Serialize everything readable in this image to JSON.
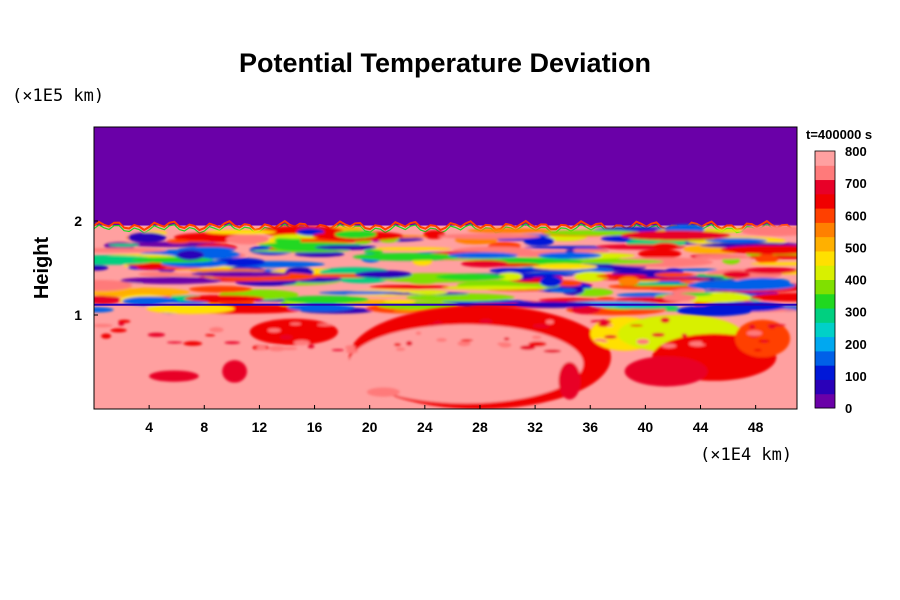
{
  "chart_data": {
    "type": "heatmap",
    "title": "Potential Temperature Deviation",
    "xlabel": "",
    "ylabel": "Height",
    "x_unit": "(×1E4 km)",
    "y_unit": "(×1E5 km)",
    "time_label": "t=400000 s",
    "xlim": [
      0,
      51
    ],
    "ylim": [
      0,
      3
    ],
    "x_ticks": [
      "4",
      "8",
      "12",
      "16",
      "20",
      "24",
      "28",
      "32",
      "36",
      "40",
      "44",
      "48"
    ],
    "y_ticks": [
      "1",
      "2"
    ],
    "colorbar": {
      "min": 0,
      "max": 800,
      "ticks": [
        "0",
        "100",
        "200",
        "300",
        "400",
        "500",
        "600",
        "700",
        "800"
      ],
      "colors": [
        "#6a00a8",
        "#2a00b8",
        "#0018d8",
        "#0060e8",
        "#00a8f0",
        "#00d0c8",
        "#00d080",
        "#20d820",
        "#80e000",
        "#d8f000",
        "#ffe000",
        "#ffb000",
        "#ff8000",
        "#ff4000",
        "#f00000",
        "#e80028",
        "#ff7a7a",
        "#ffa0a0"
      ]
    },
    "regions": {
      "upper_layer": {
        "y_range": [
          1.95,
          3.0
        ],
        "value": 0
      },
      "turbulent_band": {
        "y_range": [
          1.0,
          1.95
        ],
        "value_range": [
          0,
          800
        ]
      },
      "lower_layer": {
        "y_range": [
          0,
          1.0
        ],
        "value_range": [
          600,
          800
        ]
      }
    }
  }
}
